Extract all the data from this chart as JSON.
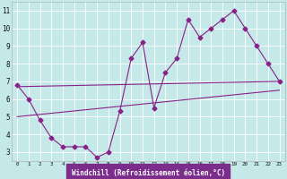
{
  "xlabel": "Windchill (Refroidissement éolien,°C)",
  "bg_color": "#c5e8e8",
  "line_color": "#882288",
  "markersize": 2.5,
  "linewidth": 0.8,
  "xlim": [
    -0.5,
    23.5
  ],
  "ylim": [
    2.5,
    11.5
  ],
  "xticks": [
    0,
    1,
    2,
    3,
    4,
    5,
    6,
    7,
    8,
    9,
    10,
    11,
    12,
    13,
    14,
    15,
    16,
    17,
    18,
    19,
    20,
    21,
    22,
    23
  ],
  "yticks": [
    3,
    4,
    5,
    6,
    7,
    8,
    9,
    10,
    11
  ],
  "grid_color": "#ffffff",
  "xlabel_bg": "#7b2d8b",
  "xlabel_color": "#ffffff",
  "series1_x": [
    0,
    1,
    2,
    3,
    4,
    5,
    6,
    7,
    8,
    9,
    10,
    11,
    12,
    13,
    14,
    15,
    16,
    17,
    18,
    19,
    20,
    21,
    22,
    23
  ],
  "series1_y": [
    6.8,
    6.0,
    4.8,
    3.8,
    3.3,
    3.3,
    3.3,
    2.7,
    3.0,
    5.3,
    8.3,
    9.2,
    5.5,
    7.5,
    8.3,
    10.5,
    9.5,
    10.0,
    10.5,
    11.0,
    10.0,
    9.0,
    8.0,
    7.0
  ],
  "series2_x": [
    0,
    23
  ],
  "series2_y": [
    5.0,
    6.5
  ],
  "series3_x": [
    0,
    23
  ],
  "series3_y": [
    6.7,
    7.0
  ]
}
